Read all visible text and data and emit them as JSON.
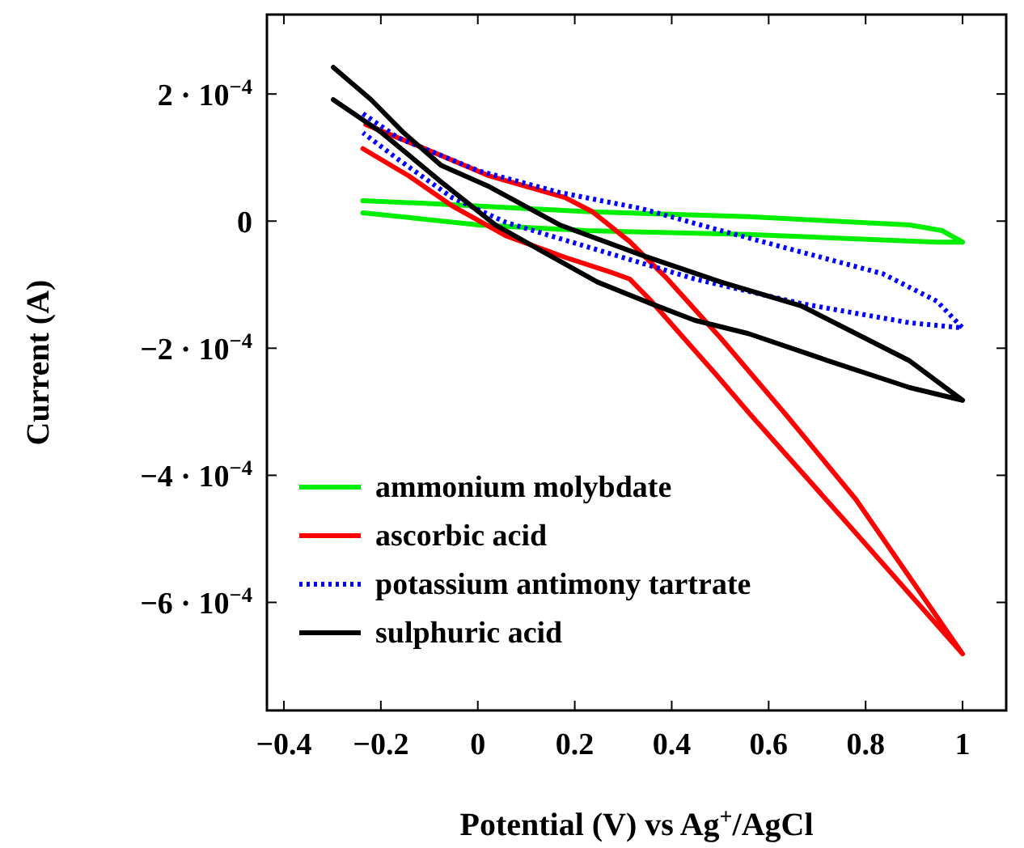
{
  "chart_data": {
    "type": "line",
    "xlabel": "Potential (V) vs Ag$^{+}$/AgCl",
    "ylabel": "Current (A)",
    "xlim": [
      -0.435,
      1.09
    ],
    "ylim": [
      -0.00077,
      0.000325
    ],
    "xticks": [
      {
        "value": -0.4,
        "label": "−0.4"
      },
      {
        "value": -0.2,
        "label": "−0.2"
      },
      0,
      0.2,
      0.4,
      0.6,
      0.8,
      1
    ],
    "yticks": [
      {
        "value": -0.0006,
        "label": "−6 · 10$^{−4}$"
      },
      {
        "value": -0.0004,
        "label": "−4 · 10$^{−4}$"
      },
      {
        "value": -0.0002,
        "label": "−2 · 10$^{−4}$"
      },
      0,
      {
        "value": 0.0002,
        "label": "2 · 10$^{−4}$"
      }
    ],
    "grid": false,
    "legend": "bottom left",
    "series": [
      {
        "name": "ammonium molybdate",
        "color": "#00ee00",
        "line_style": "solid",
        "x": [
          -0.237,
          -0.109,
          0.224,
          0.558,
          0.891,
          0.958,
          1.0,
          0.947,
          0.558,
          0.224,
          0.002,
          -0.109,
          -0.237
        ],
        "values": [
          3.2e-05,
          2.8e-05,
          1.5e-05,
          7e-06,
          -6e-06,
          -1.5e-05,
          -3.3e-05,
          -3.3e-05,
          -2.1e-05,
          -1.5e-05,
          -6e-06,
          3e-06,
          1.3e-05
        ]
      },
      {
        "name": "ascorbic acid",
        "color": "#ff0000",
        "line_style": "solid",
        "x": [
          -0.231,
          -0.109,
          0.024,
          0.18,
          0.236,
          0.313,
          0.391,
          0.502,
          0.636,
          0.78,
          1.0,
          0.758,
          0.563,
          0.491,
          0.447,
          0.358,
          0.313,
          0.269,
          0.18,
          0.058,
          -0.053,
          -0.142,
          -0.237
        ],
        "values": [
          0.000152,
          0.000114,
          7.1e-05,
          3.7e-05,
          1.5e-05,
          -3.2e-05,
          -9.1e-05,
          -0.000185,
          -0.000305,
          -0.000438,
          -0.000681,
          -0.000472,
          -0.000305,
          -0.000241,
          -0.000203,
          -0.000126,
          -9.1e-05,
          -7.9e-05,
          -5.7e-05,
          -2.3e-05,
          2.4e-05,
          7.1e-05,
          0.000114
        ]
      },
      {
        "name": "potassium antimony tartrate",
        "color": "#0000ff",
        "line_style": "dotted",
        "x": [
          -0.237,
          -0.164,
          0.002,
          0.169,
          0.336,
          0.502,
          0.669,
          0.836,
          0.947,
          1.0,
          0.891,
          0.669,
          0.447,
          0.224,
          0.058,
          -0.053,
          -0.164,
          -0.237
        ],
        "values": [
          0.000169,
          0.000131,
          7.9e-05,
          4.5e-05,
          2e-05,
          -1.5e-05,
          -4.9e-05,
          -8.3e-05,
          -0.000126,
          -0.000168,
          -0.00016,
          -0.00013,
          -9.1e-05,
          -4e-05,
          -2e-06,
          3.7e-05,
          9.7e-05,
          0.000139
        ]
      },
      {
        "name": "sulphuric acid",
        "color": "#000000",
        "line_style": "solid",
        "x": [
          -0.298,
          -0.22,
          -0.153,
          -0.076,
          0.024,
          0.169,
          0.336,
          0.502,
          0.669,
          0.78,
          0.891,
          1.0,
          0.891,
          0.724,
          0.558,
          0.447,
          0.358,
          0.247,
          0.136,
          0.036,
          -0.076,
          -0.198,
          -0.298
        ],
        "values": [
          0.000242,
          0.000191,
          0.000139,
          8.8e-05,
          5.4e-05,
          -6e-06,
          -5.3e-05,
          -9.6e-05,
          -0.000134,
          -0.000177,
          -0.00022,
          -0.000282,
          -0.000262,
          -0.00022,
          -0.000177,
          -0.000156,
          -0.00013,
          -9.6e-05,
          -4.9e-05,
          -6e-06,
          6.2e-05,
          0.000139,
          0.000191
        ]
      }
    ]
  }
}
